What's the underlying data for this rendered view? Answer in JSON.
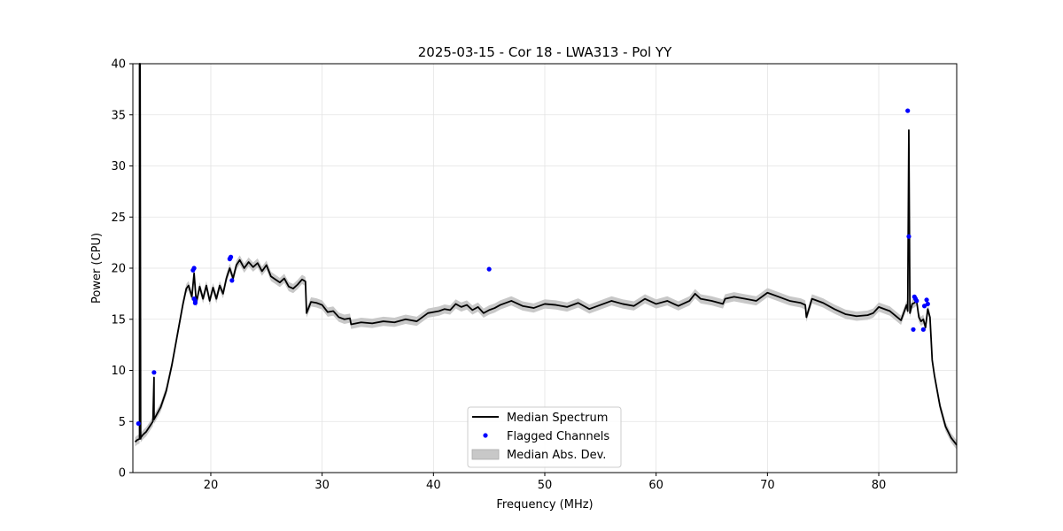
{
  "chart_data": {
    "type": "line",
    "title": "2025-03-15 - Cor 18 - LWA313 - Pol YY",
    "xlabel": "Frequency (MHz)",
    "ylabel": "Power (CPU)",
    "xlim": [
      13,
      87
    ],
    "ylim": [
      0,
      40
    ],
    "xticks": [
      20,
      30,
      40,
      50,
      60,
      70,
      80
    ],
    "yticks": [
      0,
      5,
      10,
      15,
      20,
      25,
      30,
      35,
      40
    ],
    "grid": true,
    "legend_position": "lower center",
    "series": [
      {
        "name": "Median Spectrum",
        "kind": "line",
        "color": "#000000",
        "x": [
          13.2,
          13.4,
          13.6,
          13.6,
          13.65,
          13.7,
          13.7,
          13.9,
          14.2,
          14.5,
          14.8,
          14.9,
          14.9,
          15.0,
          15.5,
          16.0,
          16.5,
          17.0,
          17.5,
          17.8,
          18.0,
          18.3,
          18.5,
          18.7,
          19.0,
          19.3,
          19.6,
          19.9,
          20.2,
          20.5,
          20.8,
          21.1,
          21.4,
          21.7,
          22.0,
          22.3,
          22.6,
          23.0,
          23.4,
          23.8,
          24.2,
          24.6,
          25.0,
          25.4,
          25.8,
          26.2,
          26.6,
          27.0,
          27.4,
          27.8,
          28.2,
          28.5,
          28.6,
          29.0,
          29.5,
          30.0,
          30.5,
          31.0,
          31.5,
          32.0,
          32.5,
          32.6,
          33.5,
          34.5,
          35.5,
          36.5,
          37.5,
          38.5,
          39.5,
          40.5,
          41.0,
          41.5,
          42.0,
          42.5,
          43.0,
          43.5,
          44.0,
          44.5,
          45.0,
          45.5,
          46.0,
          47.0,
          48.0,
          49.0,
          50.0,
          51.0,
          52.0,
          53.0,
          54.0,
          55.0,
          56.0,
          57.0,
          58.0,
          59.0,
          60.0,
          61.0,
          62.0,
          63.0,
          63.5,
          64.0,
          65.0,
          66.0,
          66.2,
          67.0,
          68.0,
          69.0,
          70.0,
          71.0,
          72.0,
          73.0,
          73.4,
          73.5,
          74.0,
          75.0,
          76.0,
          77.0,
          78.0,
          79.0,
          79.5,
          80.0,
          81.0,
          82.0,
          82.5,
          82.6,
          82.7,
          82.8,
          83.0,
          83.2,
          83.4,
          83.6,
          83.8,
          84.0,
          84.2,
          84.4,
          84.6,
          84.8,
          85.0,
          85.5,
          86.0,
          86.5,
          87.0
        ],
        "y": [
          3.0,
          3.2,
          3.3,
          40.0,
          40.0,
          3.3,
          3.4,
          3.7,
          4.0,
          4.5,
          5.0,
          9.3,
          5.2,
          5.4,
          6.4,
          8.0,
          10.5,
          13.5,
          16.5,
          18.0,
          18.3,
          17.2,
          19.5,
          16.6,
          18.2,
          17.0,
          18.3,
          16.8,
          18.1,
          17.0,
          18.3,
          17.5,
          19.0,
          20.0,
          19.0,
          20.3,
          20.8,
          20.0,
          20.6,
          20.1,
          20.5,
          19.7,
          20.3,
          19.2,
          18.9,
          18.6,
          19.0,
          18.2,
          18.0,
          18.4,
          18.9,
          18.7,
          15.6,
          16.7,
          16.6,
          16.4,
          15.7,
          15.8,
          15.2,
          15.0,
          15.1,
          14.5,
          14.7,
          14.6,
          14.8,
          14.7,
          15.0,
          14.8,
          15.6,
          15.8,
          16.0,
          15.9,
          16.5,
          16.2,
          16.4,
          15.9,
          16.2,
          15.6,
          15.9,
          16.1,
          16.4,
          16.8,
          16.3,
          16.1,
          16.5,
          16.4,
          16.2,
          16.6,
          16.0,
          16.4,
          16.8,
          16.5,
          16.3,
          17.0,
          16.5,
          16.8,
          16.3,
          16.8,
          17.5,
          17.0,
          16.8,
          16.5,
          17.0,
          17.2,
          17.0,
          16.8,
          17.6,
          17.2,
          16.8,
          16.6,
          16.4,
          15.2,
          17.0,
          16.6,
          16.0,
          15.5,
          15.3,
          15.4,
          15.6,
          16.2,
          15.8,
          14.9,
          16.4,
          15.8,
          33.5,
          15.6,
          16.5,
          16.6,
          16.8,
          15.2,
          14.8,
          15.0,
          14.2,
          16.0,
          15.2,
          11.0,
          9.5,
          6.5,
          4.5,
          3.4,
          2.7
        ]
      },
      {
        "name": "Flagged Channels",
        "kind": "scatter",
        "color": "#0000ff",
        "x": [
          13.5,
          14.9,
          18.4,
          18.5,
          18.6,
          18.5,
          18.6,
          21.7,
          21.8,
          21.9,
          21.75,
          45.0,
          82.6,
          82.7,
          83.1,
          83.2,
          83.3,
          83.4,
          84.0,
          84.1,
          84.3,
          84.4
        ],
        "y": [
          4.8,
          9.8,
          19.8,
          20.0,
          16.6,
          17.0,
          16.8,
          20.9,
          21.1,
          18.8,
          21.0,
          19.9,
          35.4,
          23.1,
          14.0,
          17.2,
          17.0,
          16.8,
          14.0,
          16.3,
          16.9,
          16.5
        ]
      },
      {
        "name": "Median Abs. Dev.",
        "kind": "band",
        "color": "#c8c8c8",
        "half_width": 0.45
      }
    ]
  }
}
